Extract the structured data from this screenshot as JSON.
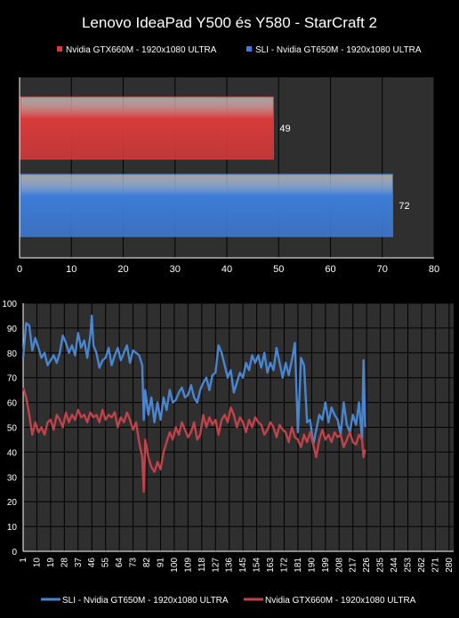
{
  "title": "Lenovo IdeaPad Y500 és Y580 - StarCraft 2",
  "chart_data": [
    {
      "type": "bar",
      "orientation": "horizontal",
      "series": [
        {
          "name": "Nvidia GTX660M - 1920x1080 ULTRA",
          "value": 49,
          "color": "#d83a3a"
        },
        {
          "name": "SLI - Nvidia GT650M - 1920x1080 ULTRA",
          "value": 72,
          "color": "#3d7cd8"
        }
      ],
      "xlim": [
        0,
        80
      ],
      "xticks": [
        0,
        10,
        20,
        30,
        40,
        50,
        60,
        70,
        80
      ],
      "legend_position": "top",
      "grid": true
    },
    {
      "type": "line",
      "xticks": [
        "1",
        "10",
        "19",
        "28",
        "37",
        "46",
        "55",
        "64",
        "73",
        "82",
        "91",
        "100",
        "109",
        "118",
        "127",
        "136",
        "145",
        "154",
        "163",
        "172",
        "181",
        "190",
        "199",
        "208",
        "217",
        "226",
        "235",
        "244",
        "253",
        "262",
        "271",
        "280"
      ],
      "ylim": [
        0,
        100
      ],
      "yticks": [
        0,
        10,
        20,
        30,
        40,
        50,
        60,
        70,
        80,
        90,
        100
      ],
      "grid": true,
      "legend_position": "bottom",
      "series": [
        {
          "name": "SLI - Nvidia GT650M - 1920x1080 ULTRA",
          "color": "#4a86cf",
          "x": [
            1,
            3,
            5,
            7,
            9,
            11,
            13,
            15,
            17,
            19,
            21,
            23,
            25,
            27,
            29,
            31,
            33,
            35,
            37,
            39,
            41,
            43,
            45,
            46,
            47,
            49,
            51,
            53,
            55,
            57,
            59,
            61,
            63,
            65,
            67,
            69,
            71,
            73,
            75,
            77,
            79,
            80,
            81,
            83,
            85,
            87,
            89,
            91,
            93,
            95,
            97,
            99,
            101,
            103,
            105,
            107,
            109,
            111,
            113,
            115,
            117,
            119,
            121,
            123,
            125,
            127,
            129,
            131,
            133,
            135,
            137,
            139,
            141,
            143,
            145,
            147,
            149,
            151,
            153,
            155,
            157,
            159,
            161,
            163,
            165,
            167,
            169,
            171,
            173,
            175,
            177,
            179,
            181,
            183,
            185,
            187,
            189,
            191,
            193,
            195,
            197,
            199,
            201,
            203,
            205,
            207,
            209,
            211,
            213,
            215,
            217,
            219,
            221,
            223,
            224,
            225
          ],
          "y": [
            78,
            92,
            91,
            81,
            86,
            82,
            78,
            80,
            75,
            77,
            79,
            76,
            80,
            87,
            84,
            80,
            83,
            79,
            88,
            82,
            85,
            78,
            87,
            95,
            83,
            80,
            74,
            77,
            78,
            82,
            75,
            79,
            82,
            77,
            80,
            83,
            76,
            81,
            80,
            79,
            75,
            53,
            65,
            55,
            62,
            52,
            60,
            53,
            62,
            57,
            65,
            60,
            61,
            64,
            66,
            62,
            63,
            67,
            62,
            60,
            65,
            68,
            70,
            65,
            71,
            72,
            83,
            80,
            75,
            70,
            73,
            64,
            68,
            72,
            70,
            76,
            73,
            79,
            76,
            79,
            74,
            80,
            72,
            76,
            73,
            82,
            76,
            70,
            76,
            71,
            77,
            84,
            48,
            78,
            75,
            52,
            53,
            43,
            49,
            55,
            53,
            60,
            52,
            58,
            55,
            53,
            47,
            60,
            51,
            48,
            55,
            51,
            60,
            45,
            77,
            50
          ]
        },
        {
          "name": "Nvidia GTX660M - 1920x1080 ULTRA",
          "color": "#c0424a",
          "x": [
            1,
            3,
            5,
            7,
            9,
            11,
            13,
            15,
            17,
            19,
            21,
            23,
            25,
            27,
            29,
            31,
            33,
            35,
            37,
            39,
            41,
            43,
            45,
            47,
            49,
            51,
            53,
            55,
            57,
            59,
            61,
            63,
            65,
            67,
            69,
            71,
            73,
            75,
            77,
            79,
            80,
            81,
            83,
            85,
            87,
            89,
            91,
            93,
            95,
            97,
            99,
            101,
            103,
            105,
            107,
            109,
            111,
            113,
            115,
            117,
            119,
            121,
            123,
            125,
            127,
            129,
            131,
            133,
            135,
            137,
            139,
            141,
            143,
            145,
            147,
            149,
            151,
            153,
            155,
            157,
            159,
            161,
            163,
            165,
            167,
            169,
            171,
            173,
            175,
            177,
            179,
            181,
            183,
            185,
            187,
            189,
            191,
            193,
            195,
            197,
            199,
            201,
            203,
            205,
            207,
            209,
            211,
            213,
            215,
            217,
            219,
            221,
            223,
            224,
            225
          ],
          "y": [
            66,
            62,
            55,
            47,
            52,
            48,
            50,
            47,
            52,
            53,
            49,
            55,
            53,
            50,
            56,
            52,
            55,
            53,
            57,
            54,
            55,
            52,
            56,
            54,
            55,
            52,
            57,
            53,
            55,
            54,
            56,
            50,
            54,
            52,
            56,
            53,
            49,
            52,
            44,
            38,
            24,
            45,
            38,
            34,
            32,
            36,
            33,
            40,
            44,
            48,
            45,
            50,
            47,
            52,
            49,
            46,
            48,
            52,
            45,
            47,
            55,
            50,
            54,
            51,
            53,
            47,
            53,
            55,
            52,
            58,
            55,
            50,
            54,
            52,
            48,
            53,
            50,
            54,
            52,
            51,
            47,
            49,
            52,
            50,
            46,
            51,
            49,
            48,
            44,
            50,
            46,
            45,
            42,
            47,
            44,
            48,
            43,
            38,
            45,
            49,
            45,
            47,
            44,
            48,
            46,
            47,
            42,
            45,
            48,
            44,
            43,
            47,
            45,
            38,
            41
          ]
        }
      ]
    }
  ]
}
